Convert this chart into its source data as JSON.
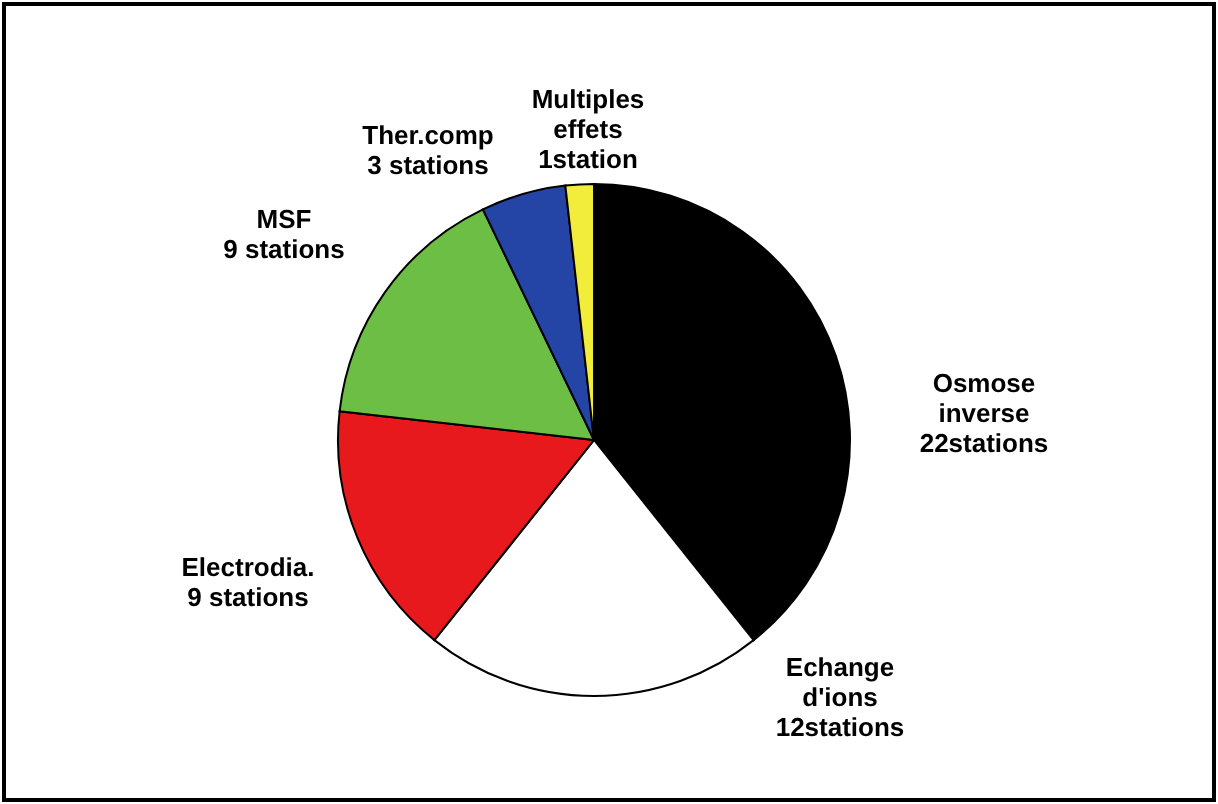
{
  "chart_data": {
    "type": "pie",
    "categories": [
      "Osmose inverse",
      "Echange d'ions",
      "Electrodia.",
      "MSF",
      "Ther.comp",
      "Multiples effets"
    ],
    "values": [
      22,
      12,
      9,
      9,
      3,
      1
    ],
    "colors": [
      "#000000",
      "#ffffff",
      "#e8191c",
      "#6cbf44",
      "#2444a6",
      "#f2ec3a"
    ],
    "value_labels": [
      "22stations",
      "12stations",
      "9 stations",
      "9 stations",
      "3 stations",
      "1station"
    ]
  }
}
